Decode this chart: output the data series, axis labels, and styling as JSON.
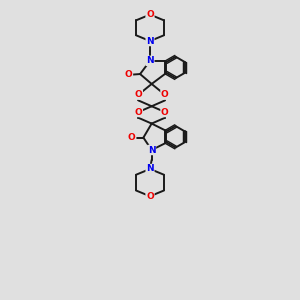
{
  "background_color": "#e0e0e0",
  "bond_color": "#1a1a1a",
  "N_color": "#0000ee",
  "O_color": "#ee0000",
  "bond_width": 1.4,
  "fig_size": [
    3.0,
    3.0
  ],
  "dpi": 100,
  "xlim": [
    0,
    10
  ],
  "ylim": [
    0,
    18
  ]
}
